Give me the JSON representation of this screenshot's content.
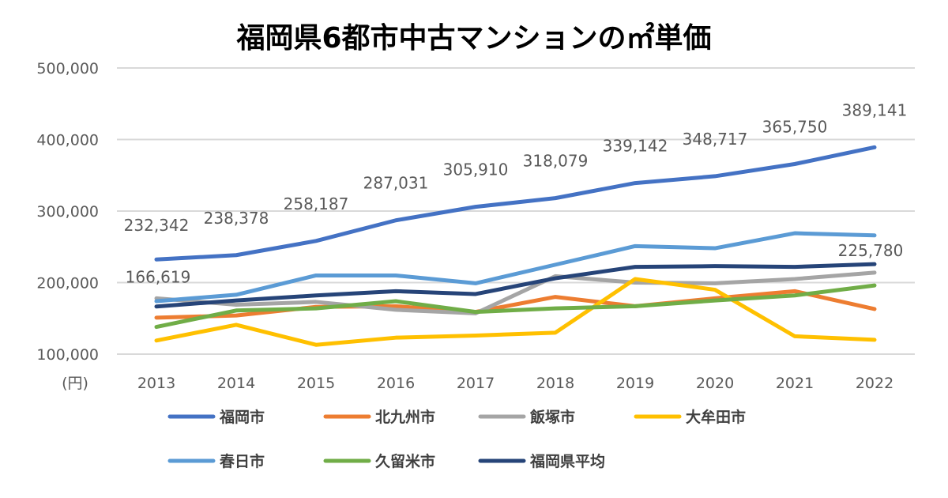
{
  "chart_data": {
    "type": "line",
    "title": "福岡県6都市中古マンションの㎡単価",
    "ylabel": "(円)",
    "ylim": [
      100000,
      500000
    ],
    "yticks": [
      100000,
      200000,
      300000,
      400000,
      500000
    ],
    "ytick_labels": [
      "100,000",
      "200,000",
      "300,000",
      "400,000",
      "500,000"
    ],
    "x": [
      "2013",
      "2014",
      "2015",
      "2016",
      "2017",
      "2018",
      "2019",
      "2020",
      "2021",
      "2022"
    ],
    "grid": true,
    "legend_position": "bottom",
    "series": [
      {
        "name": "福岡市",
        "color": "#4472C4",
        "values": [
          232342,
          238378,
          258187,
          287031,
          305910,
          318079,
          339142,
          348717,
          365750,
          389141
        ],
        "labels": [
          "232,342",
          "238,378",
          "258,187",
          "287,031",
          "305,910",
          "318,079",
          "339,142",
          "348,717",
          "365,750",
          "389,141"
        ]
      },
      {
        "name": "北九州市",
        "color": "#ED7D31",
        "values": [
          151000,
          154000,
          166000,
          167000,
          159000,
          180000,
          167000,
          178000,
          188000,
          163000
        ]
      },
      {
        "name": "飯塚市",
        "color": "#A5A5A5",
        "values": [
          178000,
          169000,
          173000,
          162000,
          157000,
          209000,
          200000,
          199000,
          205000,
          214000
        ]
      },
      {
        "name": "大牟田市",
        "color": "#FFC000",
        "values": [
          119000,
          141000,
          113000,
          123000,
          126000,
          130000,
          205000,
          190000,
          125000,
          120000
        ]
      },
      {
        "name": "春日市",
        "color": "#5B9BD5",
        "values": [
          174000,
          183000,
          210000,
          210000,
          199000,
          225000,
          251000,
          248000,
          269000,
          266000
        ]
      },
      {
        "name": "久留米市",
        "color": "#70AD47",
        "values": [
          138000,
          161000,
          164000,
          174000,
          159000,
          164000,
          167000,
          175000,
          182000,
          196000
        ]
      },
      {
        "name": "福岡県平均",
        "color": "#264478",
        "values": [
          166619,
          175000,
          182000,
          188000,
          184000,
          206000,
          222000,
          223000,
          222000,
          225780
        ],
        "labels": [
          "166,619",
          null,
          null,
          null,
          null,
          null,
          null,
          null,
          null,
          "225,780"
        ]
      }
    ]
  }
}
